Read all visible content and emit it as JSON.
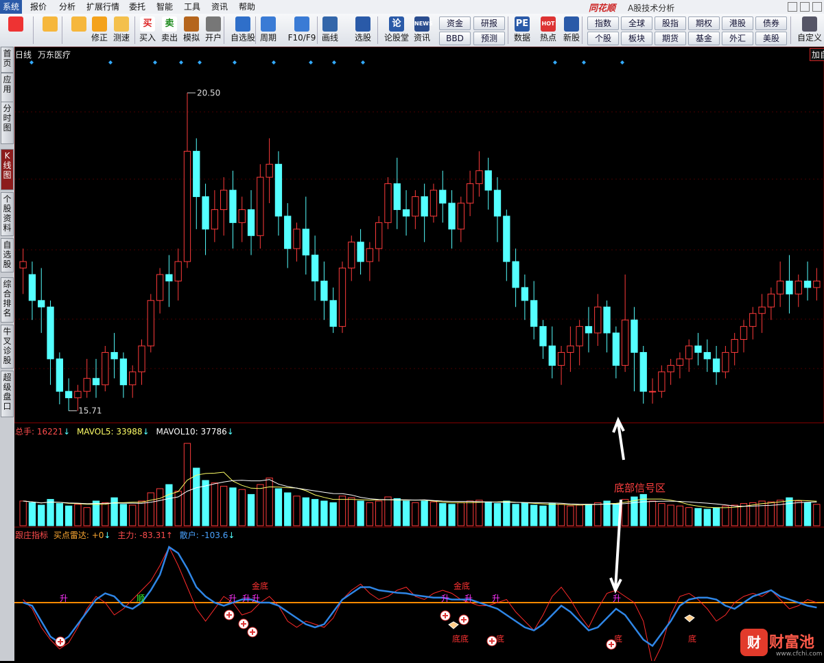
{
  "menu": {
    "items": [
      "系统",
      "报价",
      "分析",
      "扩展行情",
      "委托",
      "智能",
      "工具",
      "资讯",
      "帮助"
    ],
    "brand": "同花顺",
    "subtitle": "A股技术分析"
  },
  "toolbar": {
    "buttons": [
      {
        "label": "",
        "icon": "grid-icon"
      },
      {
        "label": "",
        "icon": "back-arrow-icon"
      },
      {
        "label": "",
        "icon": "up-down-arrow-icon"
      },
      {
        "label": "修正",
        "icon": "undo-icon"
      },
      {
        "label": "测速",
        "icon": "clock-icon"
      },
      {
        "label": "买入",
        "icon": "buy-icon",
        "glyph": "买"
      },
      {
        "label": "卖出",
        "icon": "sell-icon",
        "glyph": "卖"
      },
      {
        "label": "模拟",
        "icon": "hammer-icon"
      },
      {
        "label": "开户",
        "icon": "lock-icon"
      },
      {
        "label": "自选股",
        "icon": "star-icon"
      },
      {
        "label": "周期",
        "icon": "cycle-icon"
      },
      {
        "label": "F10/F9",
        "icon": "f10-icon"
      },
      {
        "label": "画线",
        "icon": "pen-icon"
      },
      {
        "label": "选股",
        "icon": "screen-icon"
      },
      {
        "label": "论股堂",
        "icon": "forum-icon",
        "glyph": "论"
      },
      {
        "label": "资讯",
        "icon": "news-icon",
        "glyph": "NEWS"
      },
      {
        "label": "数据",
        "icon": "pe-icon",
        "glyph": "PE"
      },
      {
        "label": "热点",
        "icon": "hot-icon",
        "glyph": "HOT"
      },
      {
        "label": "新股",
        "icon": "ipo-icon"
      },
      {
        "label": "自定义",
        "icon": "custom-icon"
      }
    ],
    "grid_buttons": [
      [
        "资金",
        "研报"
      ],
      [
        "BBD",
        "预测"
      ],
      [
        "指数",
        "全球",
        "股指",
        "期权",
        "港股",
        "债券"
      ],
      [
        "个股",
        "板块",
        "期货",
        "基金",
        "外汇",
        "美股"
      ]
    ],
    "right_edge_label": "加自"
  },
  "sidebar": {
    "tabs": [
      "首页",
      "应用",
      "分时图",
      "K线图",
      "个股资料",
      "自选股",
      "综合排名",
      "牛叉诊股",
      "超级盘口"
    ]
  },
  "chart": {
    "period": "日线",
    "stock_name": "万东医疗",
    "high_label": "20.50",
    "low_label": "15.71",
    "volume_header": {
      "total_label": "总手:",
      "total_value": "16221",
      "mavol5_label": "MAVOL5:",
      "mavol5_value": "33988",
      "mavol10_label": "MAVOL10:",
      "mavol10_value": "37786"
    },
    "indicator_header": {
      "name": "跟庄指标",
      "radar_label": "买点雷达:",
      "radar_value": "+0",
      "main_label": "主力:",
      "main_value": "-83.31",
      "retail_label": "散户:",
      "retail_value": "-103.6"
    },
    "annotation": "底部信号区",
    "signals": {
      "sheng": "升",
      "shun": "顺",
      "jindi": "金底",
      "di": "底",
      "didi": "底底"
    },
    "watermark_name": "财富池",
    "watermark_url": "www.cfchi.com",
    "colors": {
      "up": "#ff3b3b",
      "down": "#54ffff",
      "main_line": "#ff2a2a",
      "retail_line": "#2f86e6",
      "zero_line": "#ff8a00",
      "mavol5": "#ffff66",
      "mavol10": "#ffffff",
      "signal_purple": "#ff33ff",
      "signal_green": "#33ff33"
    }
  },
  "chart_data": {
    "type": "candlestick",
    "price_range": [
      15.5,
      21.0
    ],
    "candles": [
      [
        17.8,
        18.1,
        17.9,
        17.4
      ],
      [
        17.7,
        17.9,
        17.3,
        17.0
      ],
      [
        17.3,
        17.8,
        17.2,
        16.8
      ],
      [
        17.2,
        17.3,
        16.4,
        16.0
      ],
      [
        16.4,
        16.5,
        15.9,
        15.7
      ],
      [
        15.9,
        16.1,
        15.8,
        15.6
      ],
      [
        15.8,
        16.0,
        15.9,
        15.6
      ],
      [
        15.9,
        16.4,
        16.1,
        15.8
      ],
      [
        16.1,
        16.4,
        16.0,
        15.8
      ],
      [
        16.0,
        16.6,
        16.5,
        15.9
      ],
      [
        16.5,
        16.8,
        16.4,
        16.1
      ],
      [
        16.4,
        16.5,
        16.0,
        15.8
      ],
      [
        16.0,
        16.3,
        16.2,
        15.8
      ],
      [
        16.2,
        16.7,
        16.6,
        16.0
      ],
      [
        16.6,
        17.4,
        17.3,
        16.5
      ],
      [
        17.3,
        17.8,
        17.7,
        17.1
      ],
      [
        17.7,
        18.0,
        17.6,
        17.2
      ],
      [
        17.6,
        18.1,
        17.9,
        17.3
      ],
      [
        17.9,
        20.5,
        19.6,
        17.8
      ],
      [
        19.6,
        19.8,
        18.9,
        18.4
      ],
      [
        18.9,
        19.1,
        18.4,
        18.0
      ],
      [
        18.4,
        19.0,
        18.7,
        18.2
      ],
      [
        18.7,
        19.2,
        19.0,
        18.3
      ],
      [
        19.0,
        19.3,
        18.5,
        18.1
      ],
      [
        18.5,
        18.9,
        18.7,
        18.2
      ],
      [
        18.7,
        19.0,
        18.3,
        18.0
      ],
      [
        18.3,
        19.4,
        19.2,
        18.1
      ],
      [
        19.2,
        19.8,
        19.4,
        18.8
      ],
      [
        19.4,
        19.6,
        18.6,
        18.3
      ],
      [
        18.6,
        18.8,
        18.1,
        17.8
      ],
      [
        18.1,
        18.5,
        18.4,
        17.9
      ],
      [
        18.4,
        18.9,
        18.0,
        17.7
      ],
      [
        18.0,
        18.3,
        17.6,
        17.3
      ],
      [
        17.6,
        17.9,
        17.3,
        17.0
      ],
      [
        17.3,
        17.5,
        16.9,
        16.8
      ],
      [
        16.9,
        17.9,
        17.8,
        16.8
      ],
      [
        17.8,
        18.3,
        18.2,
        17.6
      ],
      [
        18.2,
        18.4,
        17.9,
        17.7
      ],
      [
        17.9,
        18.2,
        18.1,
        17.6
      ],
      [
        18.1,
        18.6,
        18.5,
        17.9
      ],
      [
        18.5,
        19.2,
        19.1,
        18.4
      ],
      [
        19.1,
        19.5,
        18.7,
        18.4
      ],
      [
        18.7,
        19.0,
        18.6,
        18.3
      ],
      [
        18.6,
        19.0,
        18.9,
        18.4
      ],
      [
        18.9,
        19.1,
        18.6,
        18.2
      ],
      [
        18.6,
        19.1,
        19.0,
        18.5
      ],
      [
        19.0,
        19.3,
        18.8,
        18.5
      ],
      [
        18.8,
        19.0,
        18.4,
        18.1
      ],
      [
        18.4,
        18.9,
        18.8,
        18.2
      ],
      [
        18.8,
        19.3,
        19.1,
        18.6
      ],
      [
        19.1,
        19.6,
        19.3,
        18.9
      ],
      [
        19.3,
        19.5,
        19.0,
        18.7
      ],
      [
        19.0,
        19.2,
        18.6,
        18.2
      ],
      [
        18.6,
        18.7,
        17.9,
        17.6
      ],
      [
        17.9,
        18.1,
        17.5,
        17.2
      ],
      [
        17.5,
        17.7,
        17.3,
        17.0
      ],
      [
        17.3,
        17.6,
        16.9,
        16.7
      ],
      [
        16.9,
        17.0,
        16.6,
        16.4
      ],
      [
        16.6,
        16.9,
        16.3,
        16.1
      ],
      [
        16.3,
        16.6,
        16.5,
        16.0
      ],
      [
        16.5,
        16.9,
        16.6,
        16.2
      ],
      [
        16.6,
        17.0,
        16.9,
        16.3
      ],
      [
        16.9,
        17.2,
        16.8,
        16.5
      ],
      [
        16.8,
        17.4,
        17.2,
        16.6
      ],
      [
        17.2,
        17.3,
        16.8,
        16.5
      ],
      [
        16.8,
        16.9,
        16.3,
        16.1
      ],
      [
        16.3,
        17.7,
        17.0,
        16.2
      ],
      [
        17.0,
        17.2,
        16.5,
        15.9
      ],
      [
        16.5,
        16.6,
        15.9,
        15.71
      ],
      [
        15.9,
        16.1,
        15.9,
        15.71
      ],
      [
        15.9,
        16.3,
        16.2,
        15.8
      ],
      [
        16.2,
        16.4,
        16.3,
        16.0
      ],
      [
        16.3,
        16.5,
        16.4,
        16.1
      ],
      [
        16.4,
        16.7,
        16.6,
        16.2
      ],
      [
        16.6,
        16.8,
        16.5,
        16.3
      ],
      [
        16.5,
        16.7,
        16.4,
        16.2
      ],
      [
        16.4,
        16.6,
        16.2,
        16.0
      ],
      [
        16.2,
        16.6,
        16.5,
        16.1
      ],
      [
        16.5,
        16.8,
        16.7,
        16.3
      ],
      [
        16.7,
        17.0,
        16.9,
        16.5
      ],
      [
        16.9,
        17.2,
        17.1,
        16.7
      ],
      [
        17.1,
        17.4,
        17.2,
        16.8
      ],
      [
        17.2,
        17.5,
        17.4,
        17.0
      ],
      [
        17.4,
        17.9,
        17.6,
        17.2
      ],
      [
        17.6,
        18.0,
        17.4,
        17.1
      ],
      [
        17.4,
        17.7,
        17.6,
        17.2
      ],
      [
        17.6,
        17.9,
        17.5,
        17.3
      ],
      [
        17.5,
        17.8,
        17.6,
        17.3
      ]
    ],
    "volume": [
      0.3,
      0.28,
      0.25,
      0.32,
      0.27,
      0.24,
      0.26,
      0.22,
      0.3,
      0.28,
      0.34,
      0.26,
      0.25,
      0.3,
      0.4,
      0.45,
      0.5,
      0.42,
      1.0,
      0.7,
      0.55,
      0.52,
      0.48,
      0.46,
      0.44,
      0.38,
      0.5,
      0.58,
      0.45,
      0.4,
      0.36,
      0.34,
      0.32,
      0.3,
      0.28,
      0.36,
      0.34,
      0.3,
      0.28,
      0.3,
      0.35,
      0.33,
      0.3,
      0.28,
      0.3,
      0.29,
      0.27,
      0.26,
      0.28,
      0.3,
      0.31,
      0.29,
      0.27,
      0.3,
      0.26,
      0.28,
      0.25,
      0.24,
      0.27,
      0.26,
      0.24,
      0.25,
      0.26,
      0.28,
      0.3,
      0.27,
      0.32,
      0.35,
      0.38,
      0.3,
      0.27,
      0.25,
      0.24,
      0.22,
      0.21,
      0.2,
      0.22,
      0.24,
      0.25,
      0.27,
      0.28,
      0.3,
      0.29,
      0.31,
      0.34,
      0.3,
      0.28,
      0.26
    ],
    "indicator": {
      "main": [
        5,
        -10,
        -40,
        -60,
        -75,
        -65,
        -40,
        -10,
        10,
        0,
        -20,
        -10,
        5,
        20,
        35,
        60,
        90,
        60,
        25,
        -10,
        -30,
        -10,
        10,
        0,
        -20,
        -15,
        0,
        10,
        -5,
        -30,
        -40,
        -30,
        -35,
        -40,
        -25,
        5,
        20,
        30,
        15,
        5,
        10,
        20,
        25,
        10,
        5,
        15,
        20,
        15,
        5,
        0,
        -5,
        -5,
        0,
        5,
        -15,
        -30,
        -45,
        -20,
        10,
        25,
        5,
        -20,
        -40,
        -10,
        15,
        20,
        10,
        0,
        -30,
        -100,
        -70,
        -20,
        10,
        15,
        5,
        -10,
        -30,
        -20,
        0,
        10,
        15,
        10,
        20,
        5,
        -10,
        -5,
        5,
        0
      ],
      "retail": [
        0,
        -5,
        -30,
        -55,
        -65,
        -55,
        -35,
        -15,
        5,
        15,
        10,
        -5,
        -10,
        0,
        20,
        45,
        90,
        80,
        55,
        25,
        10,
        0,
        -5,
        0,
        5,
        5,
        0,
        0,
        -5,
        -15,
        -25,
        -35,
        -40,
        -35,
        -15,
        5,
        15,
        25,
        25,
        20,
        18,
        16,
        15,
        12,
        10,
        8,
        8,
        5,
        5,
        5,
        0,
        -5,
        -10,
        -20,
        -30,
        -40,
        -45,
        -35,
        -20,
        -5,
        -15,
        -30,
        -45,
        -40,
        -25,
        -10,
        -20,
        -40,
        -60,
        -70,
        -50,
        -30,
        -5,
        5,
        8,
        8,
        5,
        -5,
        -10,
        0,
        10,
        15,
        20,
        10,
        5,
        0,
        -5,
        -8
      ]
    }
  }
}
